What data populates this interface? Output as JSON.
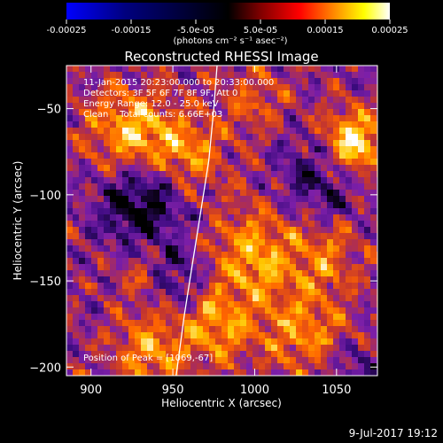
{
  "colorbar": {
    "tick_labels": [
      "-0.00025",
      "-0.00015",
      "-5.0e-05",
      "5.0e-05",
      "0.00015",
      "0.00025"
    ],
    "tick_values": [
      -0.00025,
      -0.00015,
      -5e-05,
      5e-05,
      0.00015,
      0.00025
    ],
    "range": [
      -0.00025,
      0.00025
    ],
    "units_label": "(photons cm⁻² s⁻¹ asec⁻²)"
  },
  "chart_data": {
    "type": "heatmap",
    "title": "Reconstructed RHESSI Image",
    "xlabel": "Heliocentric X (arcsec)",
    "ylabel": "Heliocentric Y (arcsec)",
    "xlim": [
      885,
      1075
    ],
    "ylim": [
      -205,
      -25
    ],
    "x_ticks": [
      900,
      950,
      1000,
      1050
    ],
    "y_ticks": [
      -50,
      -100,
      -150,
      -200
    ],
    "annotations": [
      "11-Jan-2015 20:23:00.000 to 20:33:00.000",
      "Detectors: 3F 5F 6F 7F 8F 9F, Att 0",
      "Energy Range: 12.0 - 25.0 keV",
      "Clean    Total counts: 6.66E+03"
    ],
    "peak_label": "Position of Peak = [1069,-67]",
    "peak": [
      1069,
      -67
    ],
    "colormap": [
      "#000000",
      "#3c0b80",
      "#7c1fa8",
      "#c3352f",
      "#ff6500",
      "#ffc800",
      "#ffffff"
    ],
    "limb": [
      [
        977,
        -25
      ],
      [
        975,
        -50
      ],
      [
        972,
        -80
      ],
      [
        967,
        -110
      ],
      [
        962,
        -140
      ],
      [
        957,
        -170
      ],
      [
        952,
        -205
      ]
    ]
  },
  "footer": {
    "date": "9-Jul-2017 19:12"
  }
}
